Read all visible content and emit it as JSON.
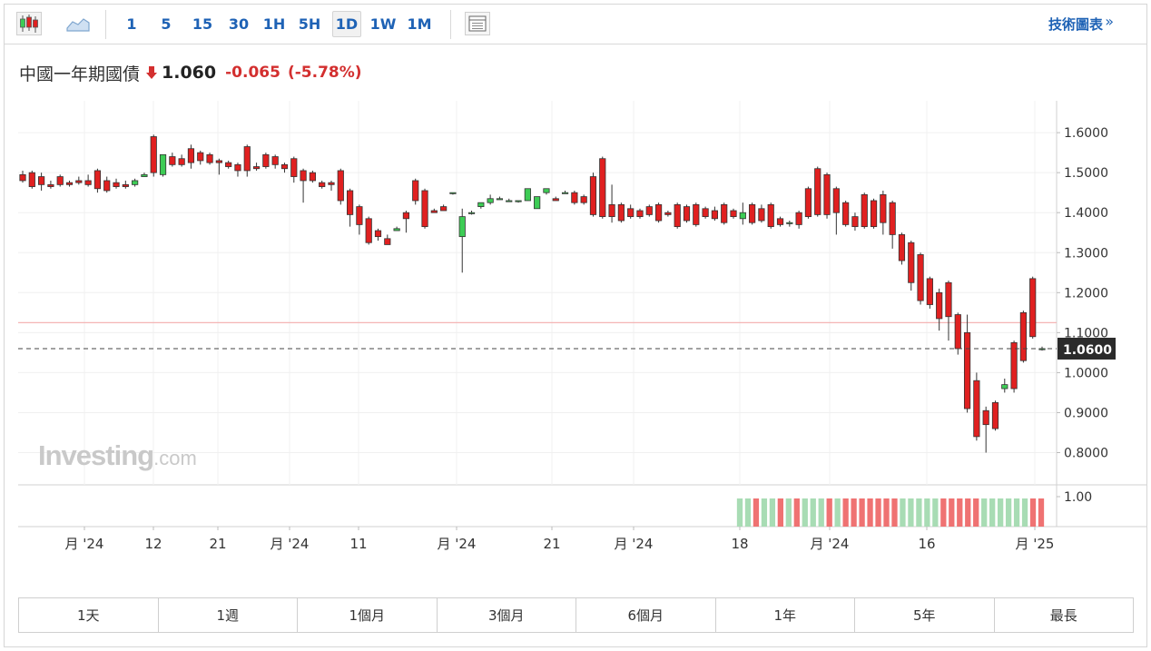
{
  "toolbar": {
    "icons": [
      "candlestick-icon",
      "area-chart-icon",
      "indicator-panel-icon"
    ],
    "intervals": [
      "1",
      "5",
      "15",
      "30",
      "1H",
      "5H",
      "1D",
      "1W",
      "1M"
    ],
    "active_interval": "1D",
    "technical_label": "技術圖表",
    "technical_arrow": "»"
  },
  "quote": {
    "name": "中國一年期國債",
    "price": "1.060",
    "change": "-0.065",
    "change_pct": "(-5.78%)",
    "direction": "down",
    "color_down": "#d32f2f"
  },
  "watermark": {
    "brand": "Investing",
    "suffix": ".com"
  },
  "chart_data": {
    "type": "candlestick",
    "y_ticks": [
      "1.6000",
      "1.5000",
      "1.4000",
      "1.3000",
      "1.2000",
      "1.1000",
      "1.0000",
      "0.9000",
      "0.8000"
    ],
    "ylim": [
      0.75,
      1.66
    ],
    "current_price_label": "1.0600",
    "current_price": 1.06,
    "reference_level": 1.125,
    "x_tick_labels": [
      "月 '24",
      "12",
      "21",
      "月 '24",
      "11",
      "月 '24",
      "21",
      "月 '24",
      "18",
      "月 '24",
      "16",
      "月 '25"
    ],
    "volume_axis_label": "1.00",
    "colors": {
      "up": "#3dcc55",
      "down": "#e02020",
      "volume_up": "#a8dcb4",
      "volume_down": "#ef7272",
      "reference": "#f4b5b5"
    },
    "candles": [
      [
        1.495,
        1.505,
        1.475,
        1.48
      ],
      [
        1.5,
        1.505,
        1.46,
        1.465
      ],
      [
        1.49,
        1.5,
        1.455,
        1.47
      ],
      [
        1.47,
        1.48,
        1.46,
        1.465
      ],
      [
        1.49,
        1.495,
        1.465,
        1.47
      ],
      [
        1.475,
        1.48,
        1.465,
        1.47
      ],
      [
        1.48,
        1.49,
        1.47,
        1.475
      ],
      [
        1.48,
        1.495,
        1.465,
        1.47
      ],
      [
        1.505,
        1.51,
        1.45,
        1.46
      ],
      [
        1.48,
        1.49,
        1.45,
        1.455
      ],
      [
        1.475,
        1.485,
        1.46,
        1.465
      ],
      [
        1.47,
        1.48,
        1.46,
        1.465
      ],
      [
        1.47,
        1.485,
        1.465,
        1.48
      ],
      [
        1.49,
        1.5,
        1.49,
        1.495
      ],
      [
        1.59,
        1.595,
        1.49,
        1.5
      ],
      [
        1.495,
        1.545,
        1.49,
        1.545
      ],
      [
        1.54,
        1.55,
        1.515,
        1.52
      ],
      [
        1.535,
        1.545,
        1.515,
        1.52
      ],
      [
        1.56,
        1.57,
        1.51,
        1.525
      ],
      [
        1.55,
        1.555,
        1.52,
        1.53
      ],
      [
        1.545,
        1.55,
        1.52,
        1.525
      ],
      [
        1.53,
        1.535,
        1.495,
        1.525
      ],
      [
        1.525,
        1.53,
        1.51,
        1.515
      ],
      [
        1.52,
        1.525,
        1.49,
        1.505
      ],
      [
        1.565,
        1.57,
        1.49,
        1.505
      ],
      [
        1.515,
        1.525,
        1.505,
        1.51
      ],
      [
        1.545,
        1.55,
        1.51,
        1.515
      ],
      [
        1.54,
        1.545,
        1.51,
        1.52
      ],
      [
        1.52,
        1.525,
        1.5,
        1.51
      ],
      [
        1.535,
        1.54,
        1.475,
        1.49
      ],
      [
        1.505,
        1.51,
        1.425,
        1.48
      ],
      [
        1.5,
        1.505,
        1.475,
        1.48
      ],
      [
        1.475,
        1.48,
        1.46,
        1.465
      ],
      [
        1.475,
        1.48,
        1.455,
        1.47
      ],
      [
        1.505,
        1.51,
        1.42,
        1.43
      ],
      [
        1.455,
        1.46,
        1.365,
        1.395
      ],
      [
        1.415,
        1.42,
        1.345,
        1.37
      ],
      [
        1.385,
        1.39,
        1.32,
        1.325
      ],
      [
        1.355,
        1.36,
        1.33,
        1.34
      ],
      [
        1.335,
        1.345,
        1.32,
        1.32
      ],
      [
        1.355,
        1.365,
        1.355,
        1.36
      ],
      [
        1.4,
        1.405,
        1.35,
        1.385
      ],
      [
        1.48,
        1.485,
        1.42,
        1.43
      ],
      [
        1.455,
        1.46,
        1.36,
        1.365
      ],
      [
        1.405,
        1.41,
        1.4,
        1.4
      ],
      [
        1.415,
        1.42,
        1.405,
        1.405
      ],
      [
        1.45,
        1.45,
        1.445,
        1.45
      ],
      [
        1.34,
        1.41,
        1.25,
        1.39
      ],
      [
        1.4,
        1.405,
        1.395,
        1.4
      ],
      [
        1.415,
        1.425,
        1.41,
        1.425
      ],
      [
        1.425,
        1.445,
        1.42,
        1.435
      ],
      [
        1.435,
        1.44,
        1.435,
        1.435
      ],
      [
        1.43,
        1.435,
        1.43,
        1.43
      ],
      [
        1.43,
        1.43,
        1.425,
        1.43
      ],
      [
        1.43,
        1.46,
        1.43,
        1.46
      ],
      [
        1.41,
        1.44,
        1.41,
        1.44
      ],
      [
        1.45,
        1.46,
        1.445,
        1.46
      ],
      [
        1.435,
        1.44,
        1.43,
        1.43
      ],
      [
        1.45,
        1.455,
        1.45,
        1.45
      ],
      [
        1.45,
        1.455,
        1.42,
        1.425
      ],
      [
        1.44,
        1.445,
        1.42,
        1.425
      ],
      [
        1.49,
        1.5,
        1.39,
        1.395
      ],
      [
        1.535,
        1.54,
        1.385,
        1.39
      ],
      [
        1.42,
        1.47,
        1.375,
        1.39
      ],
      [
        1.42,
        1.425,
        1.375,
        1.38
      ],
      [
        1.41,
        1.42,
        1.385,
        1.39
      ],
      [
        1.405,
        1.41,
        1.385,
        1.39
      ],
      [
        1.415,
        1.42,
        1.39,
        1.395
      ],
      [
        1.42,
        1.425,
        1.375,
        1.38
      ],
      [
        1.4,
        1.405,
        1.39,
        1.395
      ],
      [
        1.42,
        1.425,
        1.36,
        1.365
      ],
      [
        1.415,
        1.42,
        1.375,
        1.38
      ],
      [
        1.42,
        1.425,
        1.365,
        1.37
      ],
      [
        1.41,
        1.415,
        1.385,
        1.39
      ],
      [
        1.405,
        1.415,
        1.38,
        1.385
      ],
      [
        1.42,
        1.425,
        1.37,
        1.375
      ],
      [
        1.405,
        1.41,
        1.385,
        1.39
      ],
      [
        1.385,
        1.425,
        1.37,
        1.4
      ],
      [
        1.42,
        1.425,
        1.37,
        1.375
      ],
      [
        1.41,
        1.42,
        1.375,
        1.38
      ],
      [
        1.42,
        1.425,
        1.36,
        1.365
      ],
      [
        1.385,
        1.39,
        1.365,
        1.37
      ],
      [
        1.375,
        1.38,
        1.365,
        1.375
      ],
      [
        1.4,
        1.405,
        1.36,
        1.37
      ],
      [
        1.46,
        1.465,
        1.385,
        1.39
      ],
      [
        1.51,
        1.515,
        1.39,
        1.395
      ],
      [
        1.495,
        1.5,
        1.385,
        1.395
      ],
      [
        1.46,
        1.465,
        1.345,
        1.4
      ],
      [
        1.425,
        1.43,
        1.365,
        1.37
      ],
      [
        1.39,
        1.4,
        1.355,
        1.365
      ],
      [
        1.445,
        1.45,
        1.36,
        1.365
      ],
      [
        1.43,
        1.435,
        1.36,
        1.365
      ],
      [
        1.445,
        1.455,
        1.345,
        1.375
      ],
      [
        1.425,
        1.43,
        1.31,
        1.345
      ],
      [
        1.345,
        1.35,
        1.27,
        1.28
      ],
      [
        1.325,
        1.33,
        1.205,
        1.225
      ],
      [
        1.295,
        1.3,
        1.17,
        1.18
      ],
      [
        1.235,
        1.24,
        1.16,
        1.17
      ],
      [
        1.2,
        1.21,
        1.105,
        1.135
      ],
      [
        1.225,
        1.23,
        1.08,
        1.14
      ],
      [
        1.145,
        1.15,
        1.045,
        1.06
      ],
      [
        1.1,
        1.145,
        0.9,
        0.91
      ],
      [
        0.98,
        1.0,
        0.83,
        0.84
      ],
      [
        0.905,
        0.915,
        0.8,
        0.87
      ],
      [
        0.925,
        0.93,
        0.855,
        0.86
      ],
      [
        0.96,
        0.985,
        0.95,
        0.97
      ],
      [
        1.075,
        1.08,
        0.95,
        0.96
      ],
      [
        1.15,
        1.155,
        1.025,
        1.03
      ],
      [
        1.235,
        1.24,
        1.085,
        1.09
      ],
      [
        1.06,
        1.065,
        1.055,
        1.06
      ]
    ],
    "volume_up": [
      1,
      1,
      0,
      1,
      1,
      0,
      1,
      0,
      1,
      1,
      1,
      0,
      1,
      0,
      0,
      0,
      0,
      0,
      0,
      0,
      1,
      1,
      1,
      1,
      1,
      0,
      0,
      0,
      0,
      0,
      1,
      1,
      1,
      1,
      1,
      1,
      0,
      0
    ]
  },
  "ranges": [
    "1天",
    "1週",
    "1個月",
    "3個月",
    "6個月",
    "1年",
    "5年",
    "最長"
  ],
  "active_range": "1天"
}
